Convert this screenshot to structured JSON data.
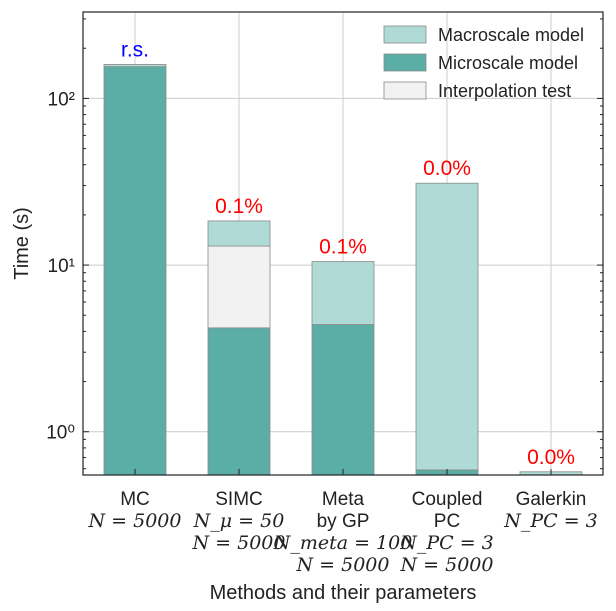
{
  "chart_data": {
    "type": "bar",
    "stacked": true,
    "y_scale": "log",
    "ylim": [
      0.55,
      330
    ],
    "grid": true,
    "legend_position": "top-right",
    "xlabel": "Methods and their parameters",
    "ylabel": "Time (s)",
    "y_tick_values": [
      1,
      10,
      100
    ],
    "y_tick_labels": [
      "10⁰",
      "10¹",
      "10²"
    ],
    "categories": [
      "MC",
      "SIMC",
      "Meta by GP",
      "Coupled PC",
      "Galerkin"
    ],
    "category_label_lines": [
      [
        "MC",
        "N = 5000"
      ],
      [
        "SIMC",
        "N_μ = 50",
        "N = 5000"
      ],
      [
        "Meta",
        "by GP",
        "N_meta = 100",
        "N = 5000"
      ],
      [
        "Coupled",
        "PC",
        "N_PC = 3",
        "N = 5000"
      ],
      [
        "Galerkin",
        "N_PC = 3"
      ]
    ],
    "series": [
      {
        "name": "Microscale model",
        "color": "#5aaea6",
        "values": [
          155,
          4.2,
          4.4,
          0.59,
          0
        ]
      },
      {
        "name": "Interpolation test",
        "color": "#f2f2f2",
        "values": [
          0,
          8.8,
          0,
          0,
          0
        ]
      },
      {
        "name": "Macroscale model",
        "color": "#b0dad6",
        "values": [
          5,
          5.4,
          6.1,
          30.4,
          0.575
        ]
      }
    ],
    "legend_order": [
      "Macroscale model",
      "Microscale model",
      "Interpolation test"
    ],
    "annotations": [
      {
        "category": "MC",
        "text": "r.s.",
        "color": "#0000ff"
      },
      {
        "category": "SIMC",
        "text": "0.1%",
        "color": "#ff0000"
      },
      {
        "category": "Meta by GP",
        "text": "0.1%",
        "color": "#ff0000"
      },
      {
        "category": "Coupled PC",
        "text": "0.0%",
        "color": "#ff0000"
      },
      {
        "category": "Galerkin",
        "text": "0.0%",
        "color": "#ff0000"
      }
    ]
  }
}
